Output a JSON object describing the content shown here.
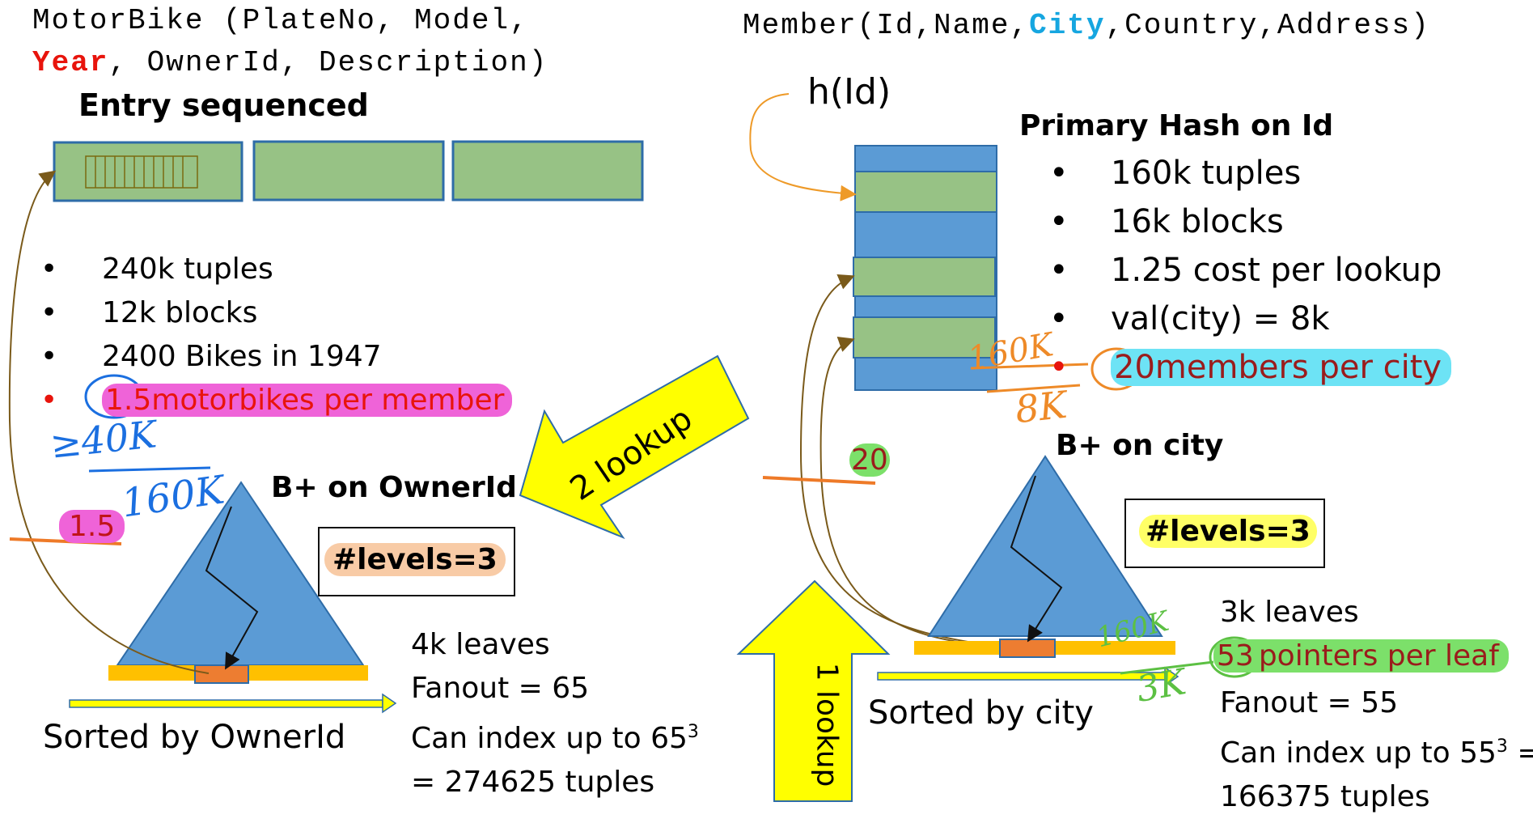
{
  "left": {
    "relation": {
      "prefix": "MotorBike (PlateNo, Model,",
      "key_attr": "Year",
      "suffix": ", OwnerId, Description)"
    },
    "storage_title": "Entry sequenced",
    "bullets": [
      "240k tuples",
      "12k blocks",
      "2400 Bikes in 1947"
    ],
    "highlight_bullet": {
      "num": "1.5",
      "text": "motorbikes per member"
    },
    "index_title": "B+ on OwnerId",
    "levels": "#levels=3",
    "sort_label": "Sorted by OwnerId",
    "stats": [
      "4k leaves",
      "Fanout = 65",
      "Can index up to 65",
      "= 274625 tuples"
    ],
    "stats_sup": "3",
    "annot_num": "1.5",
    "hand_top": "≥40K",
    "hand_bottom": "160K"
  },
  "middle": {
    "arrow_big": "2 lookup",
    "arrow_up": "1 lookup",
    "annot_20": "20"
  },
  "right": {
    "relation": {
      "prefix": "Member(Id,Name,",
      "key_attr": "City",
      "suffix": ",Country,Address)"
    },
    "hash_fn": "h(Id)",
    "hash_title": "Primary Hash on Id",
    "bullets": [
      "160k tuples",
      "16k blocks",
      "1.25 cost per lookup",
      "val(city) = 8k"
    ],
    "highlight_bullet": {
      "num": "20",
      "text": "members per city"
    },
    "hand_top": "160K",
    "hand_bottom": "8K",
    "index_title": "B+ on city",
    "levels": "#levels=3",
    "sort_label": "Sorted by city",
    "leaves": "3k leaves",
    "pointers": {
      "num": "53",
      "text": "pointers per leaf"
    },
    "hand_leaf_top": "160K",
    "hand_leaf_bottom": "3K",
    "stats": [
      "Fanout = 55",
      "Can index up to 55",
      "166375  tuples"
    ],
    "stats_sup": "3",
    "stats_eq": " ="
  },
  "colors": {
    "block_green": "#97c285",
    "block_blue": "#5b9bd5",
    "tree_blue": "#5b9bd5",
    "leaf_yellow": "#ffc000",
    "leaf_orange": "#ed7d31",
    "arrow_yellow": "#ffff00",
    "ink_blue": "#1b6fe0",
    "ink_orange": "#ee8a28",
    "ink_green": "#5cc043"
  }
}
